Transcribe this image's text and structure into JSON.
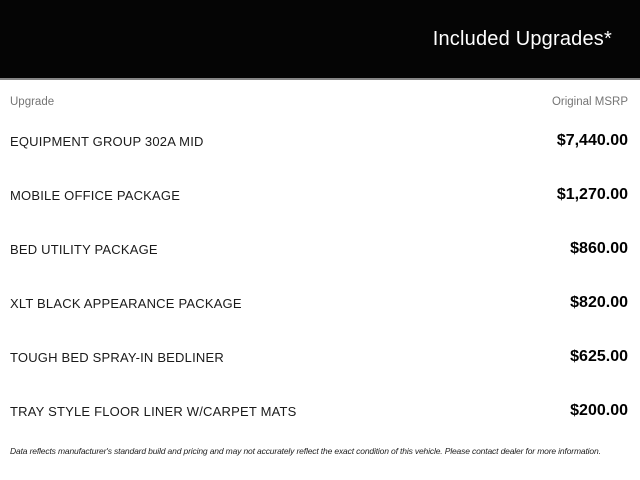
{
  "header": {
    "title": "Included Upgrades*",
    "background_color": "#050505",
    "text_color": "#ffffff"
  },
  "table": {
    "columns": {
      "upgrade": "Upgrade",
      "msrp": "Original MSRP"
    },
    "rows": [
      {
        "name": "EQUIPMENT GROUP 302A MID",
        "price": "$7,440.00"
      },
      {
        "name": "MOBILE OFFICE PACKAGE",
        "price": "$1,270.00"
      },
      {
        "name": "BED UTILITY PACKAGE",
        "price": "$860.00"
      },
      {
        "name": "XLT BLACK APPEARANCE PACKAGE",
        "price": "$820.00"
      },
      {
        "name": "TOUGH BED SPRAY-IN BEDLINER",
        "price": "$625.00"
      },
      {
        "name": "TRAY STYLE FLOOR LINER W/CARPET MATS",
        "price": "$200.00"
      }
    ]
  },
  "footer": {
    "disclaimer": "Data reflects manufacturer's standard build and pricing and may not accurately reflect the exact condition of this vehicle. Please contact dealer for more information."
  }
}
